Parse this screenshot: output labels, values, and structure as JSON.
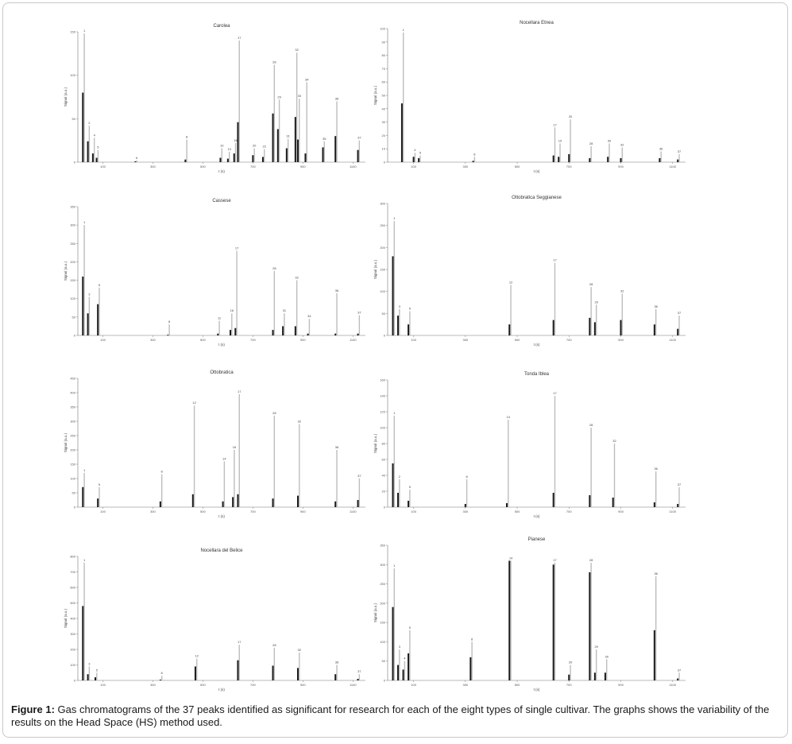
{
  "caption": {
    "label": "Figure 1:",
    "text": " Gas chromatograms of the 37 peaks identified as significant for research for each of the eight types of single cultivar. The graphs shows the variability of the results on the Head Space (HS) method used."
  },
  "colors": {
    "bar": "#1a1a1a",
    "peak_line": "#bdbdbd",
    "axis": "#777777",
    "frame": "#c9c9c9"
  },
  "chart_data": [
    {
      "type": "bar",
      "title": "Carolea",
      "xlabel": "t (s)",
      "ylabel": "Signal (a.u.)",
      "xlim": [
        0,
        1150
      ],
      "ylim": [
        0,
        150
      ],
      "yticks": [
        0,
        50,
        100,
        150
      ],
      "x_ticks": [
        100,
        300,
        500,
        700,
        900,
        1100
      ],
      "peaks": [
        {
          "label": "1",
          "x": 20,
          "y": 148,
          "bar": 80
        },
        {
          "label": "2",
          "x": 40,
          "y": 42,
          "bar": 24
        },
        {
          "label": "4",
          "x": 60,
          "y": 28,
          "bar": 10
        },
        {
          "label": "5",
          "x": 75,
          "y": 14,
          "bar": 5
        },
        {
          "label": "6",
          "x": 230,
          "y": 2,
          "bar": 1
        },
        {
          "label": "8",
          "x": 430,
          "y": 26,
          "bar": 3
        },
        {
          "label": "10",
          "x": 570,
          "y": 16,
          "bar": 5
        },
        {
          "label": "13",
          "x": 600,
          "y": 12,
          "bar": 4
        },
        {
          "label": "16",
          "x": 625,
          "y": 22,
          "bar": 10
        },
        {
          "label": "17",
          "x": 640,
          "y": 140,
          "bar": 46
        },
        {
          "label": "20",
          "x": 700,
          "y": 16,
          "bar": 8
        },
        {
          "label": "22",
          "x": 740,
          "y": 15,
          "bar": 6
        },
        {
          "label": "28",
          "x": 780,
          "y": 112,
          "bar": 56
        },
        {
          "label": "29",
          "x": 800,
          "y": 72,
          "bar": 38
        },
        {
          "label": "31",
          "x": 835,
          "y": 27,
          "bar": 16
        },
        {
          "label": "32",
          "x": 870,
          "y": 126,
          "bar": 52
        },
        {
          "label": "33",
          "x": 880,
          "y": 73,
          "bar": 26
        },
        {
          "label": "34",
          "x": 910,
          "y": 92,
          "bar": 10
        },
        {
          "label": "35",
          "x": 980,
          "y": 24,
          "bar": 17
        },
        {
          "label": "36",
          "x": 1030,
          "y": 70,
          "bar": 30
        },
        {
          "label": "37",
          "x": 1120,
          "y": 25,
          "bar": 14
        }
      ]
    },
    {
      "type": "bar",
      "title": "Nocellara Etnea",
      "xlabel": "t (s)",
      "ylabel": "Signal (a.u.)",
      "xlim": [
        0,
        1150
      ],
      "ylim": [
        0,
        100
      ],
      "yticks": [
        0,
        10,
        20,
        30,
        40,
        50,
        60,
        70,
        80,
        90,
        100
      ],
      "x_ticks": [
        100,
        300,
        500,
        700,
        900,
        1100
      ],
      "peaks": [
        {
          "label": "1",
          "x": 55,
          "y": 97,
          "bar": 44
        },
        {
          "label": "4",
          "x": 100,
          "y": 7,
          "bar": 4
        },
        {
          "label": "5",
          "x": 120,
          "y": 5,
          "bar": 3
        },
        {
          "label": "8",
          "x": 330,
          "y": 4,
          "bar": 1
        },
        {
          "label": "17",
          "x": 640,
          "y": 26,
          "bar": 5
        },
        {
          "label": "19",
          "x": 660,
          "y": 14,
          "bar": 4
        },
        {
          "label": "20",
          "x": 700,
          "y": 32,
          "bar": 6
        },
        {
          "label": "28",
          "x": 780,
          "y": 12,
          "bar": 3
        },
        {
          "label": "30",
          "x": 850,
          "y": 14,
          "bar": 4
        },
        {
          "label": "32",
          "x": 900,
          "y": 11,
          "bar": 3
        },
        {
          "label": "36",
          "x": 1050,
          "y": 8,
          "bar": 3
        },
        {
          "label": "37",
          "x": 1120,
          "y": 6,
          "bar": 2
        }
      ]
    },
    {
      "type": "bar",
      "title": "Cassese",
      "xlabel": "t (s)",
      "ylabel": "Signal (a.u.)",
      "xlim": [
        0,
        1150
      ],
      "ylim": [
        0,
        350
      ],
      "yticks": [
        0,
        50,
        100,
        150,
        200,
        250,
        300,
        350
      ],
      "x_ticks": [
        100,
        300,
        500,
        700,
        900,
        1100
      ],
      "peaks": [
        {
          "label": "1",
          "x": 20,
          "y": 300,
          "bar": 160
        },
        {
          "label": "3",
          "x": 40,
          "y": 105,
          "bar": 60
        },
        {
          "label": "5",
          "x": 80,
          "y": 130,
          "bar": 85
        },
        {
          "label": "8",
          "x": 360,
          "y": 30,
          "bar": 2
        },
        {
          "label": "11",
          "x": 560,
          "y": 40,
          "bar": 5
        },
        {
          "label": "16",
          "x": 610,
          "y": 60,
          "bar": 15
        },
        {
          "label": "17",
          "x": 630,
          "y": 230,
          "bar": 20
        },
        {
          "label": "28",
          "x": 780,
          "y": 175,
          "bar": 15
        },
        {
          "label": "31",
          "x": 820,
          "y": 60,
          "bar": 25
        },
        {
          "label": "32",
          "x": 870,
          "y": 150,
          "bar": 25
        },
        {
          "label": "34",
          "x": 920,
          "y": 45,
          "bar": 5
        },
        {
          "label": "36",
          "x": 1030,
          "y": 115,
          "bar": 5
        },
        {
          "label": "37",
          "x": 1120,
          "y": 55,
          "bar": 5
        }
      ]
    },
    {
      "type": "bar",
      "title": "Ottobratica Seggianese",
      "xlabel": "t (s)",
      "ylabel": "Signal (a.u.)",
      "xlim": [
        0,
        1150
      ],
      "ylim": [
        0,
        300
      ],
      "yticks": [
        0,
        50,
        100,
        150,
        200,
        250,
        300
      ],
      "x_ticks": [
        100,
        300,
        500,
        700,
        900,
        1100
      ],
      "peaks": [
        {
          "label": "1",
          "x": 20,
          "y": 260,
          "bar": 180
        },
        {
          "label": "3",
          "x": 40,
          "y": 60,
          "bar": 45
        },
        {
          "label": "5",
          "x": 80,
          "y": 55,
          "bar": 25
        },
        {
          "label": "12",
          "x": 470,
          "y": 115,
          "bar": 25
        },
        {
          "label": "17",
          "x": 640,
          "y": 165,
          "bar": 35
        },
        {
          "label": "28",
          "x": 780,
          "y": 110,
          "bar": 40
        },
        {
          "label": "29",
          "x": 800,
          "y": 70,
          "bar": 30
        },
        {
          "label": "32",
          "x": 900,
          "y": 95,
          "bar": 35
        },
        {
          "label": "36",
          "x": 1030,
          "y": 60,
          "bar": 25
        },
        {
          "label": "37",
          "x": 1120,
          "y": 45,
          "bar": 15
        }
      ]
    },
    {
      "type": "bar",
      "title": "Ottobratica",
      "xlabel": "t (s)",
      "ylabel": "Signal (a.u.)",
      "xlim": [
        0,
        1150
      ],
      "ylim": [
        0,
        450
      ],
      "yticks": [
        0,
        50,
        100,
        150,
        200,
        250,
        300,
        350,
        400,
        450
      ],
      "x_ticks": [
        100,
        300,
        500,
        700,
        900,
        1100
      ],
      "peaks": [
        {
          "label": "1",
          "x": 20,
          "y": 120,
          "bar": 70
        },
        {
          "label": "5",
          "x": 80,
          "y": 70,
          "bar": 30
        },
        {
          "label": "8",
          "x": 330,
          "y": 115,
          "bar": 20
        },
        {
          "label": "12",
          "x": 460,
          "y": 355,
          "bar": 45
        },
        {
          "label": "14",
          "x": 580,
          "y": 160,
          "bar": 20
        },
        {
          "label": "16",
          "x": 620,
          "y": 200,
          "bar": 35
        },
        {
          "label": "17",
          "x": 640,
          "y": 395,
          "bar": 45
        },
        {
          "label": "28",
          "x": 780,
          "y": 320,
          "bar": 30
        },
        {
          "label": "32",
          "x": 880,
          "y": 290,
          "bar": 40
        },
        {
          "label": "36",
          "x": 1030,
          "y": 200,
          "bar": 20
        },
        {
          "label": "37",
          "x": 1120,
          "y": 100,
          "bar": 25
        }
      ]
    },
    {
      "type": "bar",
      "title": "Tonda Iblea",
      "xlabel": "t (s)",
      "ylabel": "Signal (a.u.)",
      "xlim": [
        0,
        1150
      ],
      "ylim": [
        0,
        160
      ],
      "yticks": [
        0,
        20,
        40,
        60,
        80,
        100,
        120,
        140,
        160
      ],
      "x_ticks": [
        100,
        300,
        500,
        700,
        900,
        1100
      ],
      "peaks": [
        {
          "label": "1",
          "x": 20,
          "y": 115,
          "bar": 55
        },
        {
          "label": "2",
          "x": 40,
          "y": 35,
          "bar": 18
        },
        {
          "label": "5",
          "x": 80,
          "y": 22,
          "bar": 8
        },
        {
          "label": "8",
          "x": 300,
          "y": 35,
          "bar": 4
        },
        {
          "label": "14",
          "x": 460,
          "y": 110,
          "bar": 5
        },
        {
          "label": "17",
          "x": 640,
          "y": 140,
          "bar": 18
        },
        {
          "label": "28",
          "x": 780,
          "y": 100,
          "bar": 15
        },
        {
          "label": "32",
          "x": 870,
          "y": 80,
          "bar": 12
        },
        {
          "label": "36",
          "x": 1030,
          "y": 45,
          "bar": 6
        },
        {
          "label": "37",
          "x": 1120,
          "y": 25,
          "bar": 4
        }
      ]
    },
    {
      "type": "bar",
      "title": "Nocellara del Belice",
      "xlabel": "t (s)",
      "ylabel": "Signal (a.u.)",
      "xlim": [
        0,
        1150
      ],
      "ylim": [
        0,
        800
      ],
      "yticks": [
        0,
        100,
        200,
        300,
        400,
        500,
        600,
        700,
        800
      ],
      "x_ticks": [
        100,
        300,
        500,
        700,
        900,
        1100
      ],
      "peaks": [
        {
          "label": "1",
          "x": 20,
          "y": 760,
          "bar": 480
        },
        {
          "label": "3",
          "x": 40,
          "y": 90,
          "bar": 40
        },
        {
          "label": "5",
          "x": 70,
          "y": 50,
          "bar": 20
        },
        {
          "label": "8",
          "x": 330,
          "y": 30,
          "bar": 5
        },
        {
          "label": "12",
          "x": 470,
          "y": 140,
          "bar": 90
        },
        {
          "label": "17",
          "x": 640,
          "y": 230,
          "bar": 130
        },
        {
          "label": "28",
          "x": 780,
          "y": 210,
          "bar": 95
        },
        {
          "label": "32",
          "x": 880,
          "y": 180,
          "bar": 80
        },
        {
          "label": "36",
          "x": 1030,
          "y": 100,
          "bar": 40
        },
        {
          "label": "37",
          "x": 1120,
          "y": 40,
          "bar": 10
        }
      ]
    },
    {
      "type": "bar",
      "title": "Pianese",
      "xlabel": "t (s)",
      "ylabel": "Signal (a.u.)",
      "xlim": [
        0,
        1150
      ],
      "ylim": [
        0,
        350
      ],
      "yticks": [
        0,
        50,
        100,
        150,
        200,
        250,
        300,
        350
      ],
      "x_ticks": [
        100,
        300,
        500,
        700,
        900,
        1100
      ],
      "peaks": [
        {
          "label": "1",
          "x": 20,
          "y": 290,
          "bar": 190
        },
        {
          "label": "3",
          "x": 40,
          "y": 80,
          "bar": 40
        },
        {
          "label": "4",
          "x": 60,
          "y": 50,
          "bar": 28
        },
        {
          "label": "5",
          "x": 80,
          "y": 130,
          "bar": 70
        },
        {
          "label": "8",
          "x": 320,
          "y": 100,
          "bar": 60
        },
        {
          "label": "14",
          "x": 470,
          "y": 310,
          "bar": 310
        },
        {
          "label": "17",
          "x": 640,
          "y": 305,
          "bar": 300
        },
        {
          "label": "20",
          "x": 700,
          "y": 40,
          "bar": 15
        },
        {
          "label": "28",
          "x": 780,
          "y": 305,
          "bar": 280
        },
        {
          "label": "29",
          "x": 800,
          "y": 80,
          "bar": 20
        },
        {
          "label": "30",
          "x": 840,
          "y": 55,
          "bar": 20
        },
        {
          "label": "36",
          "x": 1030,
          "y": 270,
          "bar": 130
        },
        {
          "label": "37",
          "x": 1120,
          "y": 20,
          "bar": 5
        }
      ]
    }
  ]
}
